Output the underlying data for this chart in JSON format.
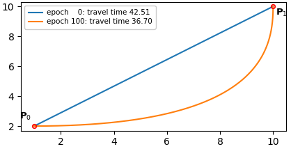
{
  "title": "",
  "xlim": [
    0.5,
    10.5
  ],
  "ylim": [
    1.7,
    10.3
  ],
  "x_start": 1.0,
  "y_start": 2.0,
  "x_end": 10.0,
  "y_end": 10.0,
  "line0_color": "#1f77b4",
  "line1_color": "#ff7f0e",
  "point_color": "red",
  "legend_label0": "epoch    0: travel time 42.51",
  "legend_label1": "epoch 100: travel time 36.70",
  "p0_label": "$\\mathbf{P}_0$",
  "p1_label": "$\\mathbf{P}_1$",
  "xticks": [
    2,
    4,
    6,
    8,
    10
  ],
  "yticks": [
    2,
    4,
    6,
    8,
    10
  ],
  "bezier_cp1_x": 9.5,
  "bezier_cp1_y": 2.0,
  "bezier_cp2_x": 10.0,
  "bezier_cp2_y": 7.0
}
